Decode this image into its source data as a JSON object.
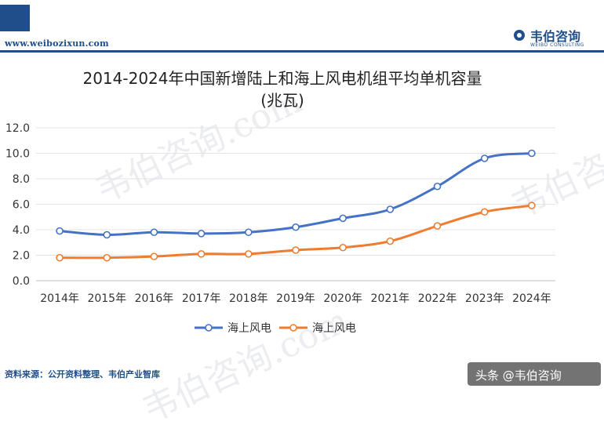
{
  "header": {
    "site_url": "www.weibozixun.com",
    "logo_cn": "韦伯咨询",
    "logo_en": "WEIBO CONSULTING",
    "brand_color": "#1f4e8a"
  },
  "footer": {
    "source": "资料来源：公开资料整理、韦伯产业智库",
    "overlay_text": "头条 @韦伯咨询"
  },
  "watermark_text": "韦伯咨询.com",
  "chart_data": {
    "type": "line",
    "title_line1": "2014-2024年中国新增陆上和海上风电机组平均单机容量",
    "title_line2": "(兆瓦)",
    "categories": [
      "2014年",
      "2015年",
      "2016年",
      "2017年",
      "2018年",
      "2019年",
      "2020年",
      "2021年",
      "2022年",
      "2023年",
      "2024年"
    ],
    "ylim": [
      0,
      12
    ],
    "yticks": [
      "0.0",
      "2.0",
      "4.0",
      "6.0",
      "8.0",
      "10.0",
      "12.0"
    ],
    "grid": true,
    "legend_position": "bottom",
    "series": [
      {
        "name": "海上风电",
        "color": "#4472c4",
        "values": [
          3.9,
          3.6,
          3.8,
          3.7,
          3.8,
          4.2,
          4.9,
          5.6,
          7.4,
          9.6,
          10.0
        ]
      },
      {
        "name": "海上风电",
        "color": "#ed7d31",
        "values": [
          1.8,
          1.8,
          1.9,
          2.1,
          2.1,
          2.4,
          2.6,
          3.1,
          4.3,
          5.4,
          5.9
        ]
      }
    ]
  }
}
